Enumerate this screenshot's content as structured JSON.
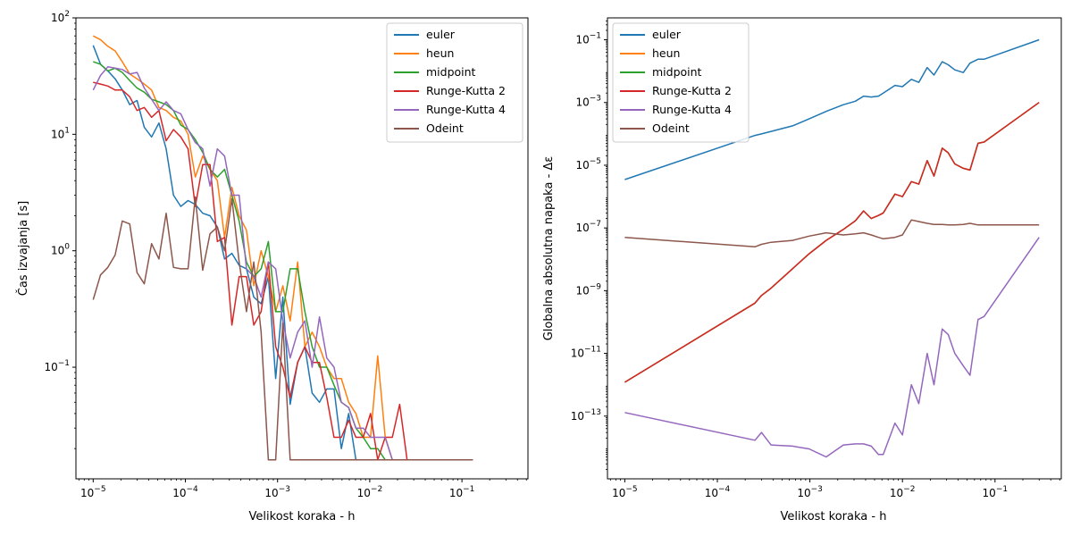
{
  "figure": {
    "background": "#ffffff"
  },
  "chart_data": [
    {
      "type": "line",
      "xlabel": "Velikost koraka - h",
      "ylabel": "Čas izvajanja [s]",
      "xscale": "log",
      "yscale": "log",
      "xlim": [
        6.5e-06,
        0.52
      ],
      "ylim": [
        0.011,
        100
      ],
      "xticks": [
        {
          "value": 1e-05,
          "base": "10",
          "exp": "−5"
        },
        {
          "value": 0.0001,
          "base": "10",
          "exp": "−4"
        },
        {
          "value": 0.001,
          "base": "10",
          "exp": "−3"
        },
        {
          "value": 0.01,
          "base": "10",
          "exp": "−2"
        },
        {
          "value": 0.1,
          "base": "10",
          "exp": "−1"
        }
      ],
      "yticks": [
        {
          "value": 0.1,
          "base": "10",
          "exp": "−1"
        },
        {
          "value": 1,
          "base": "10",
          "exp": "0"
        },
        {
          "value": 10,
          "base": "10",
          "exp": "1"
        },
        {
          "value": 100,
          "base": "10",
          "exp": "2"
        }
      ],
      "legend_position": "top-right",
      "x": [
        1e-05,
        1.2e-05,
        1.44e-05,
        1.73e-05,
        2.07e-05,
        2.49e-05,
        2.99e-05,
        3.58e-05,
        4.3e-05,
        5.16e-05,
        6.19e-05,
        7.43e-05,
        8.92e-05,
        0.000107,
        0.000128,
        0.000154,
        0.000185,
        0.000222,
        0.000266,
        0.00032,
        0.000383,
        0.00046,
        0.000552,
        0.000663,
        0.000795,
        0.000954,
        0.00114,
        0.00137,
        0.00165,
        0.00198,
        0.00237,
        0.00285,
        0.00342,
        0.0041,
        0.00492,
        0.0059,
        0.00708,
        0.0085,
        0.0102,
        0.0122,
        0.0147,
        0.0176,
        0.0211,
        0.0254,
        0.0304,
        0.0365,
        0.0438,
        0.0526,
        0.0631,
        0.0757,
        0.0909,
        0.109,
        0.131
      ],
      "series": [
        {
          "name": "euler",
          "color": "#1f77b4",
          "values": [
            58,
            40,
            35,
            30,
            24,
            18,
            19.5,
            11.5,
            9.5,
            12.5,
            7.5,
            3,
            2.4,
            2.7,
            2.5,
            2.1,
            2,
            1.6,
            0.85,
            0.95,
            0.75,
            0.7,
            0.4,
            0.35,
            0.6,
            0.08,
            0.4,
            0.048,
            0.11,
            0.15,
            0.06,
            0.05,
            0.065,
            0.065,
            0.02,
            0.04,
            0.016,
            0.016,
            0.016,
            0.016,
            0.016,
            0.016,
            0.016,
            0.016,
            0.016,
            0.016,
            0.016,
            0.016,
            0.016,
            0.016,
            0.016,
            0.016,
            0.016
          ]
        },
        {
          "name": "heun",
          "color": "#ff7f0e",
          "values": [
            70,
            65,
            57,
            52,
            42,
            33,
            30,
            27,
            24,
            17,
            16,
            14,
            13,
            10,
            4.3,
            6.5,
            5,
            4,
            1.3,
            3.5,
            2,
            1.5,
            0.5,
            1,
            0.6,
            0.3,
            0.5,
            0.25,
            0.8,
            0.15,
            0.2,
            0.15,
            0.1,
            0.08,
            0.08,
            0.05,
            0.04,
            0.025,
            0.025,
            0.125,
            0.025,
            0.016,
            0.016,
            0.016,
            0.016,
            0.016,
            0.016,
            0.016,
            0.016,
            0.016,
            0.016,
            0.016,
            0.016
          ]
        },
        {
          "name": "midpoint",
          "color": "#2ca02c",
          "values": [
            42,
            40,
            35,
            37,
            34,
            29,
            25,
            23,
            20,
            19,
            18,
            16,
            12,
            11,
            9,
            7,
            5,
            4.3,
            5,
            3,
            1.8,
            0.8,
            0.6,
            0.7,
            1.2,
            0.3,
            0.3,
            0.7,
            0.7,
            0.3,
            0.15,
            0.1,
            0.1,
            0.07,
            0.05,
            0.045,
            0.03,
            0.025,
            0.02,
            0.02,
            0.016,
            0.016,
            0.016,
            0.016,
            0.016,
            0.016,
            0.016,
            0.016,
            0.016,
            0.016,
            0.016,
            0.016,
            0.016
          ]
        },
        {
          "name": "Runge-Kutta 2",
          "color": "#d62728",
          "values": [
            28,
            27,
            26,
            24,
            24,
            21,
            16,
            17,
            14,
            16,
            8.8,
            11,
            9.5,
            7.5,
            2.4,
            5.5,
            5.5,
            1.2,
            1.3,
            0.23,
            0.6,
            0.6,
            0.23,
            0.3,
            0.8,
            0.15,
            0.1,
            0.055,
            0.11,
            0.15,
            0.11,
            0.11,
            0.055,
            0.025,
            0.025,
            0.035,
            0.025,
            0.025,
            0.04,
            0.016,
            0.025,
            0.025,
            0.048,
            0.016,
            0.016,
            0.016,
            0.016,
            0.016,
            0.016,
            0.016,
            0.016,
            0.016,
            0.016
          ]
        },
        {
          "name": "Runge-Kutta 4",
          "color": "#9467bd",
          "values": [
            24,
            32,
            38,
            37,
            36,
            33,
            34,
            25,
            20,
            16,
            19,
            16,
            15,
            11,
            8.5,
            7.5,
            3.6,
            7.5,
            6.5,
            3,
            3,
            0.7,
            0.6,
            0.4,
            0.8,
            0.7,
            0.25,
            0.12,
            0.2,
            0.25,
            0.1,
            0.27,
            0.12,
            0.1,
            0.05,
            0.045,
            0.03,
            0.03,
            0.025,
            0.025,
            0.025,
            0.016,
            0.016,
            0.016,
            0.016,
            0.016,
            0.016,
            0.016,
            0.016,
            0.016,
            0.016,
            0.016,
            0.016
          ]
        },
        {
          "name": "Odeint",
          "color": "#8c564b",
          "values": [
            0.38,
            0.62,
            0.72,
            0.92,
            1.8,
            1.7,
            0.65,
            0.52,
            1.15,
            0.85,
            2.1,
            0.72,
            0.7,
            0.7,
            2.9,
            0.68,
            1.4,
            1.6,
            1.0,
            2.8,
            0.8,
            0.3,
            0.8,
            0.2,
            0.016,
            0.016,
            0.24,
            0.016,
            0.016,
            0.016,
            0.016,
            0.016,
            0.016,
            0.016,
            0.016,
            0.016,
            0.016,
            0.016,
            0.016,
            0.016,
            0.016,
            0.016,
            0.016,
            0.016,
            0.016,
            0.016,
            0.016,
            0.016,
            0.016,
            0.016,
            0.016,
            0.016,
            0.016
          ]
        }
      ]
    },
    {
      "type": "line",
      "xlabel": "Velikost koraka - h",
      "ylabel": "Globalna absolutna napaka - Δε",
      "xscale": "log",
      "yscale": "log",
      "xlim": [
        6.5e-06,
        0.52
      ],
      "ylim": [
        1e-15,
        0.5
      ],
      "xticks": [
        {
          "value": 1e-05,
          "base": "10",
          "exp": "−5"
        },
        {
          "value": 0.0001,
          "base": "10",
          "exp": "−4"
        },
        {
          "value": 0.001,
          "base": "10",
          "exp": "−3"
        },
        {
          "value": 0.01,
          "base": "10",
          "exp": "−2"
        },
        {
          "value": 0.1,
          "base": "10",
          "exp": "−1"
        }
      ],
      "yticks": [
        {
          "value": 1e-13,
          "base": "10",
          "exp": "−13"
        },
        {
          "value": 1e-11,
          "base": "10",
          "exp": "−11"
        },
        {
          "value": 1e-09,
          "base": "10",
          "exp": "−9"
        },
        {
          "value": 1e-07,
          "base": "10",
          "exp": "−7"
        },
        {
          "value": 1e-05,
          "base": "10",
          "exp": "−5"
        },
        {
          "value": 0.001,
          "base": "10",
          "exp": "−3"
        },
        {
          "value": 0.1,
          "base": "10",
          "exp": "−1"
        }
      ],
      "legend_position": "top-left",
      "x": [
        1e-05,
        0.000255,
        0.0003,
        0.00038,
        0.00065,
        0.00098,
        0.0015,
        0.0023,
        0.0031,
        0.0038,
        0.0046,
        0.0055,
        0.0062,
        0.0083,
        0.01,
        0.0125,
        0.015,
        0.0185,
        0.0219,
        0.0269,
        0.0312,
        0.0368,
        0.0454,
        0.0537,
        0.0656,
        0.0762,
        0.3
      ],
      "series": [
        {
          "name": "euler",
          "color": "#1f77b4",
          "values": [
            3.5e-06,
            8.9e-05,
            0.0001,
            0.00012,
            0.00018,
            0.0003,
            0.00052,
            0.00085,
            0.0011,
            0.0016,
            0.0015,
            0.0016,
            0.002,
            0.0035,
            0.0032,
            0.0055,
            0.0044,
            0.013,
            0.0075,
            0.02,
            0.016,
            0.011,
            0.009,
            0.018,
            0.024,
            0.024,
            0.1
          ]
        },
        {
          "name": "heun",
          "color": "#ff7f0e",
          "values": [
            1.2e-12,
            4e-10,
            7e-10,
            1.2e-09,
            5e-09,
            1.5e-08,
            4e-08,
            9e-08,
            1.7e-07,
            3.5e-07,
            2e-07,
            2.5e-07,
            3e-07,
            1.2e-06,
            1e-06,
            3e-06,
            2.5e-06,
            1.4e-05,
            4.5e-06,
            3.5e-05,
            2.5e-05,
            1.1e-05,
            8e-06,
            7e-06,
            5e-05,
            5.5e-05,
            0.001
          ]
        },
        {
          "name": "midpoint",
          "color": "#2ca02c",
          "values": [
            1.2e-12,
            4e-10,
            7e-10,
            1.2e-09,
            5e-09,
            1.5e-08,
            4e-08,
            9e-08,
            1.7e-07,
            3.5e-07,
            2e-07,
            2.5e-07,
            3e-07,
            1.2e-06,
            1e-06,
            3e-06,
            2.5e-06,
            1.4e-05,
            4.5e-06,
            3.5e-05,
            2.5e-05,
            1.1e-05,
            8e-06,
            7e-06,
            5e-05,
            5.5e-05,
            0.001
          ]
        },
        {
          "name": "Runge-Kutta 2",
          "color": "#d62728",
          "values": [
            1.2e-12,
            4e-10,
            7e-10,
            1.2e-09,
            5e-09,
            1.5e-08,
            4e-08,
            9e-08,
            1.7e-07,
            3.5e-07,
            2e-07,
            2.5e-07,
            3e-07,
            1.2e-06,
            1e-06,
            3e-06,
            2.5e-06,
            1.4e-05,
            4.5e-06,
            3.5e-05,
            2.5e-05,
            1.1e-05,
            8e-06,
            7e-06,
            5e-05,
            5.5e-05,
            0.001
          ]
        },
        {
          "name": "Runge-Kutta 4",
          "color": "#9467bd",
          "values": [
            1.3e-13,
            1.7e-14,
            3e-14,
            1.2e-14,
            1.1e-14,
            9e-15,
            5e-15,
            1.2e-14,
            1.3e-14,
            1.3e-14,
            1.1e-14,
            6e-15,
            6e-15,
            6e-14,
            2.5e-14,
            1e-12,
            2.5e-13,
            1e-11,
            1e-12,
            6e-11,
            4e-11,
            1e-11,
            4e-12,
            2e-12,
            1.2e-10,
            1.5e-10,
            5e-08
          ]
        },
        {
          "name": "Odeint",
          "color": "#8c564b",
          "values": [
            5e-08,
            2.5e-08,
            3e-08,
            3.5e-08,
            4e-08,
            5.5e-08,
            7e-08,
            6e-08,
            6.5e-08,
            7e-08,
            6e-08,
            5e-08,
            4.5e-08,
            5e-08,
            6e-08,
            1.8e-07,
            1.6e-07,
            1.4e-07,
            1.3e-07,
            1.3e-07,
            1.25e-07,
            1.25e-07,
            1.3e-07,
            1.4e-07,
            1.25e-07,
            1.25e-07,
            1.25e-07
          ]
        }
      ]
    }
  ]
}
